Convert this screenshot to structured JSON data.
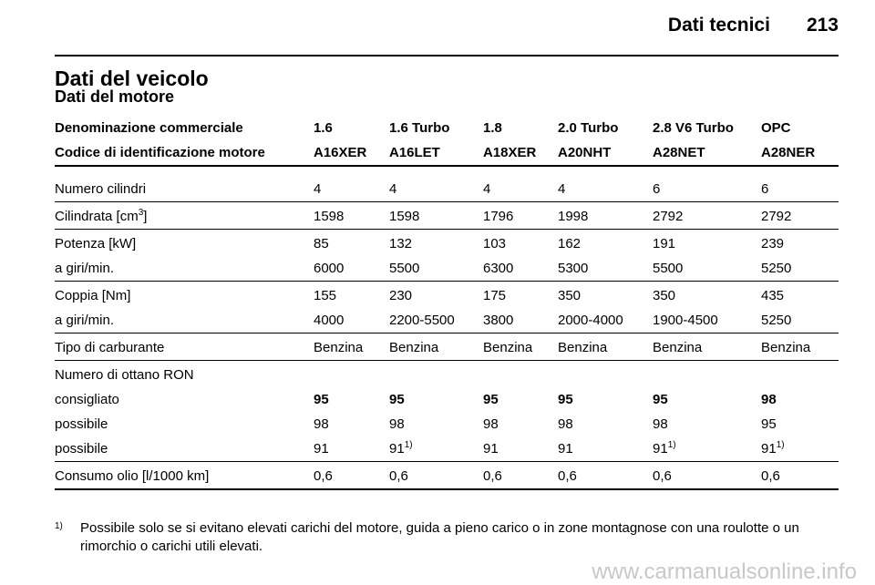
{
  "header": {
    "section": "Dati tecnici",
    "page": "213"
  },
  "title": "Dati del veicolo",
  "subtitle": "Dati del motore",
  "table": {
    "header_rows": [
      [
        "Denominazione commerciale",
        "1.6",
        "1.6 Turbo",
        "1.8",
        "2.0 Turbo",
        "2.8 V6 Turbo",
        "OPC"
      ],
      [
        "Codice di identificazione motore",
        "A16XER",
        "A16LET",
        "A18XER",
        "A20NHT",
        "A28NET",
        "A28NER"
      ]
    ],
    "groups": [
      [
        {
          "cells": [
            "Numero cilindri",
            "4",
            "4",
            "4",
            "4",
            "6",
            "6"
          ]
        }
      ],
      [
        {
          "cells": [
            {
              "text": "Cilindrata [cm",
              "sup": "3",
              "tail": "]"
            },
            "1598",
            "1598",
            "1796",
            "1998",
            "2792",
            "2792"
          ]
        }
      ],
      [
        {
          "cells": [
            "Potenza [kW]",
            "85",
            "132",
            "103",
            "162",
            "191",
            "239"
          ]
        },
        {
          "cells": [
            "a giri/min.",
            "6000",
            "5500",
            "6300",
            "5300",
            "5500",
            "5250"
          ]
        }
      ],
      [
        {
          "cells": [
            "Coppia [Nm]",
            "155",
            "230",
            "175",
            "350",
            "350",
            "435"
          ]
        },
        {
          "cells": [
            "a giri/min.",
            "4000",
            "2200-5500",
            "3800",
            "2000-4000",
            "1900-4500",
            "5250"
          ]
        }
      ],
      [
        {
          "cells": [
            "Tipo di carburante",
            "Benzina",
            "Benzina",
            "Benzina",
            "Benzina",
            "Benzina",
            "Benzina"
          ]
        }
      ],
      [
        {
          "cells": [
            "Numero di ottano RON"
          ]
        },
        {
          "cells": [
            "consigliato",
            "95",
            "95",
            "95",
            "95",
            "95",
            "98"
          ],
          "bold_values": true
        },
        {
          "cells": [
            "possibile",
            "98",
            "98",
            "98",
            "98",
            "98",
            "95"
          ]
        },
        {
          "cells": [
            "possibile",
            "91",
            {
              "text": "91",
              "sup": "1)"
            },
            "91",
            "91",
            {
              "text": "91",
              "sup": "1)"
            },
            {
              "text": "91",
              "sup": "1)"
            }
          ]
        }
      ],
      [
        {
          "cells": [
            "Consumo olio [l/1000 km]",
            "0,6",
            "0,6",
            "0,6",
            "0,6",
            "0,6",
            "0,6"
          ]
        }
      ]
    ]
  },
  "footnote": {
    "mark": "1)",
    "text": "Possibile solo se si evitano elevati carichi del motore, guida a pieno carico o in zone montagnose con una roulotte o un rimorchio o carichi utili elevati."
  },
  "watermark": "www.carmanualsonline.info"
}
